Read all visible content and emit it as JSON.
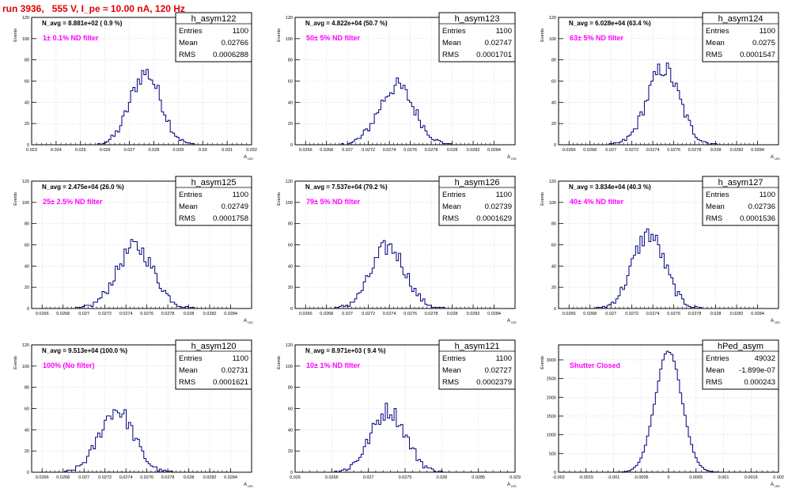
{
  "title": "run 3936,   555 V, I_pe ≈ 10.00 nA, 120 Hz",
  "colors": {
    "hist": "#000080",
    "annot": "#ff00ff",
    "title": "#e00000",
    "grid": "#c8c8c8"
  },
  "stat_labels": {
    "entries": "Entries",
    "mean": "Mean",
    "rms": "RMS"
  },
  "y_axis_label": "Events",
  "x_axis_label": "A",
  "x_axis_sub": "LED",
  "chart_data": [
    {
      "type": "histogram",
      "name": "h_asym122",
      "navg": "N_avg = 8.881e+02 ( 0.9 %)",
      "filter": "1± 0.1% ND filter",
      "entries": "1100",
      "mean": "0.02766",
      "rms": "0.0006288",
      "xlim": [
        0.023,
        0.032
      ],
      "ylim": [
        0,
        120
      ],
      "xticks": [
        "0.023",
        "0.024",
        "0.025",
        "0.026",
        "0.027",
        "0.028",
        "0.029",
        "0.03",
        "0.031",
        "0.032"
      ],
      "yticks": [
        "0",
        "20",
        "40",
        "60",
        "80",
        "100",
        "120"
      ],
      "center": 0.02766,
      "sigma": 0.00063,
      "peak": 68,
      "grid": true,
      "logscale": false
    },
    {
      "type": "histogram",
      "name": "h_asym123",
      "navg": "N_avg = 4.822e+04 (50.7 %)",
      "filter": "50± 5% ND filter",
      "entries": "1100",
      "mean": "0.02747",
      "rms": "0.0001701",
      "xlim": [
        0.0265,
        0.0286
      ],
      "ylim": [
        0,
        120
      ],
      "xticks": [
        "0.0266",
        "0.0268",
        "0.027",
        "0.0272",
        "0.0274",
        "0.0276",
        "0.0278",
        "0.028",
        "0.0282",
        "0.0284"
      ],
      "yticks": [
        "0",
        "20",
        "40",
        "60",
        "80",
        "100",
        "120"
      ],
      "center": 0.02747,
      "sigma": 0.00017,
      "peak": 55,
      "grid": true,
      "logscale": false
    },
    {
      "type": "histogram",
      "name": "h_asym124",
      "navg": "N_avg = 6.028e+04 (63.4 %)",
      "filter": "63± 5% ND filter",
      "entries": "1100",
      "mean": "0.0275",
      "rms": "0.0001547",
      "xlim": [
        0.0265,
        0.0286
      ],
      "ylim": [
        0,
        120
      ],
      "xticks": [
        "0.0266",
        "0.0268",
        "0.027",
        "0.0272",
        "0.0274",
        "0.0276",
        "0.0278",
        "0.028",
        "0.0282",
        "0.0284"
      ],
      "yticks": [
        "0",
        "20",
        "40",
        "60",
        "80",
        "100",
        "120"
      ],
      "center": 0.0275,
      "sigma": 0.000155,
      "peak": 72,
      "grid": true,
      "logscale": false
    },
    {
      "type": "histogram",
      "name": "h_asym125",
      "navg": "N_avg = 2.475e+04 (26.0 %)",
      "filter": "25± 2.5% ND filter",
      "entries": "1100",
      "mean": "0.02749",
      "rms": "0.0001758",
      "xlim": [
        0.0265,
        0.0286
      ],
      "ylim": [
        0,
        120
      ],
      "xticks": [
        "0.0266",
        "0.0268",
        "0.027",
        "0.0272",
        "0.0274",
        "0.0276",
        "0.0278",
        "0.028",
        "0.0282",
        "0.0284"
      ],
      "yticks": [
        "0",
        "20",
        "40",
        "60",
        "80",
        "100",
        "120"
      ],
      "center": 0.02749,
      "sigma": 0.000176,
      "peak": 58,
      "grid": true,
      "logscale": false
    },
    {
      "type": "histogram",
      "name": "h_asym126",
      "navg": "N_avg = 7.537e+04 (79.2 %)",
      "filter": "79± 5% ND filter",
      "entries": "1100",
      "mean": "0.02739",
      "rms": "0.0001629",
      "xlim": [
        0.0265,
        0.0286
      ],
      "ylim": [
        0,
        120
      ],
      "xticks": [
        "0.0266",
        "0.0268",
        "0.027",
        "0.0272",
        "0.0274",
        "0.0276",
        "0.0278",
        "0.028",
        "0.0282",
        "0.0284"
      ],
      "yticks": [
        "0",
        "20",
        "40",
        "60",
        "80",
        "100",
        "120"
      ],
      "center": 0.02739,
      "sigma": 0.000163,
      "peak": 58,
      "grid": true,
      "logscale": false
    },
    {
      "type": "histogram",
      "name": "h_asym127",
      "navg": "N_avg = 3.834e+04 (40.3 %)",
      "filter": "40± 4% ND filter",
      "entries": "1100",
      "mean": "0.02736",
      "rms": "0.0001536",
      "xlim": [
        0.0265,
        0.0286
      ],
      "ylim": [
        0,
        120
      ],
      "xticks": [
        "0.0266",
        "0.0268",
        "0.027",
        "0.0272",
        "0.0274",
        "0.0276",
        "0.0278",
        "0.028",
        "0.0282",
        "0.0284"
      ],
      "yticks": [
        "0",
        "20",
        "40",
        "60",
        "80",
        "100",
        "120"
      ],
      "center": 0.02736,
      "sigma": 0.000154,
      "peak": 70,
      "grid": true,
      "logscale": false
    },
    {
      "type": "histogram",
      "name": "h_asym120",
      "navg": "N_avg = 9.513e+04 (100.0 %)",
      "filter": "100% (No filter)",
      "entries": "1100",
      "mean": "0.02731",
      "rms": "0.0001621",
      "xlim": [
        0.0265,
        0.0286
      ],
      "ylim": [
        0,
        120
      ],
      "xticks": [
        "0.0266",
        "0.0268",
        "0.027",
        "0.0272",
        "0.0274",
        "0.0276",
        "0.0278",
        "0.028",
        "0.0282",
        "0.0284"
      ],
      "yticks": [
        "0",
        "20",
        "40",
        "60",
        "80",
        "100",
        "120"
      ],
      "center": 0.02731,
      "sigma": 0.000162,
      "peak": 59,
      "grid": true,
      "logscale": false
    },
    {
      "type": "histogram",
      "name": "h_asym121",
      "navg": "N_avg = 8.971e+03 ( 9.4 %)",
      "filter": "10± 1% ND filter",
      "entries": "1100",
      "mean": "0.02727",
      "rms": "0.0002379",
      "xlim": [
        0.026,
        0.029
      ],
      "ylim": [
        0,
        120
      ],
      "xticks": [
        "0.026",
        "0.0265",
        "0.027",
        "0.0275",
        "0.028",
        "0.0285",
        "0.029"
      ],
      "yticks": [
        "0",
        "20",
        "40",
        "60",
        "80",
        "100",
        "120"
      ],
      "center": 0.02727,
      "sigma": 0.000238,
      "peak": 58,
      "grid": true,
      "logscale": false
    },
    {
      "type": "histogram",
      "name": "hPed_asym",
      "navg": "",
      "filter": "Shutter Closed",
      "entries": "49032",
      "mean": "-1.899e-07",
      "rms": "0.000243",
      "xlim": [
        -0.002,
        0.002
      ],
      "ylim": [
        0,
        3400
      ],
      "xticks": [
        "-0.002",
        "-0.0015",
        "-0.001",
        "-0.0005",
        "0",
        "0.0005",
        "0.001",
        "0.0015",
        "0.002"
      ],
      "yticks": [
        "0",
        "500",
        "1000",
        "1500",
        "2000",
        "2500",
        "3000"
      ],
      "center": 0.0,
      "sigma": 0.000243,
      "peak": 3230,
      "grid": true,
      "logscale": false
    }
  ]
}
